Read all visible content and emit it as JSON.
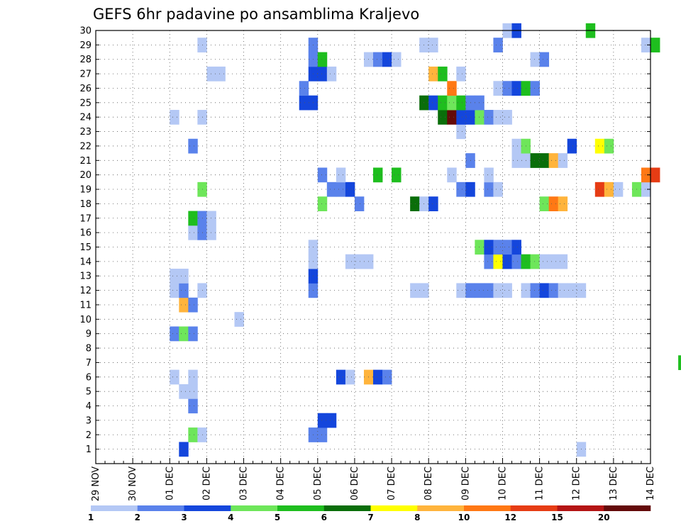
{
  "chart_data": {
    "type": "heatmap",
    "title": "GEFS 6hr padavine po ansamblima Kraljevo",
    "x_tick_labels": [
      "29 NOV",
      "30 NOV",
      "01 DEC",
      "02 DEC",
      "03 DEC",
      "04 DEC",
      "05 DEC",
      "06 DEC",
      "07 DEC",
      "08 DEC",
      "09 DEC",
      "10 DEC",
      "11 DEC",
      "12 DEC",
      "13 DEC",
      "14 DEC"
    ],
    "x_step": "6 hours",
    "y_members": [
      1,
      2,
      3,
      4,
      5,
      6,
      7,
      8,
      9,
      10,
      11,
      12,
      13,
      14,
      15,
      16,
      17,
      18,
      19,
      20,
      21,
      22,
      23,
      24,
      25,
      26,
      27,
      28,
      29,
      30
    ],
    "y_range": [
      0,
      30
    ],
    "grid": true,
    "colorbar": {
      "labels": [
        "1",
        "2",
        "3",
        "4",
        "5",
        "6",
        "7",
        "8",
        "10",
        "12",
        "15",
        "20"
      ],
      "colors": [
        "#b4c8f5",
        "#5a82eb",
        "#1446dc",
        "#6ee65a",
        "#1ebe1e",
        "#0a6e0a",
        "#ffff00",
        "#ffb43c",
        "#ff7814",
        "#e63c14",
        "#b41414",
        "#640a0a"
      ]
    },
    "cells": [
      {
        "member": 1,
        "step": 9,
        "level": 2
      },
      {
        "member": 1,
        "step": 52,
        "level": 0
      },
      {
        "member": 1,
        "step": 80,
        "level": 0
      },
      {
        "member": 2,
        "step": 10,
        "level": 3
      },
      {
        "member": 2,
        "step": 11,
        "level": 0
      },
      {
        "member": 2,
        "step": 23,
        "level": 1
      },
      {
        "member": 2,
        "step": 24,
        "level": 1
      },
      {
        "member": 3,
        "step": 24,
        "level": 2
      },
      {
        "member": 3,
        "step": 25,
        "level": 2
      },
      {
        "member": 3,
        "step": 82,
        "level": 0
      },
      {
        "member": 4,
        "step": 10,
        "level": 1
      },
      {
        "member": 4,
        "step": 90,
        "level": 3
      },
      {
        "member": 5,
        "step": 9,
        "level": 0
      },
      {
        "member": 5,
        "step": 10,
        "level": 0
      },
      {
        "member": 5,
        "step": 70,
        "level": 2
      },
      {
        "member": 6,
        "step": 8,
        "level": 0
      },
      {
        "member": 6,
        "step": 10,
        "level": 0
      },
      {
        "member": 6,
        "step": 26,
        "level": 2
      },
      {
        "member": 6,
        "step": 27,
        "level": 0
      },
      {
        "member": 6,
        "step": 29,
        "level": 7
      },
      {
        "member": 6,
        "step": 30,
        "level": 2
      },
      {
        "member": 6,
        "step": 31,
        "level": 1
      },
      {
        "member": 6,
        "step": 90,
        "level": 1
      },
      {
        "member": 6,
        "step": 95,
        "level": 6
      },
      {
        "member": 7,
        "step": 63,
        "level": 4
      },
      {
        "member": 7,
        "step": 64,
        "level": 3
      },
      {
        "member": 8,
        "step": 95,
        "level": 1
      },
      {
        "member": 9,
        "step": 8,
        "level": 1
      },
      {
        "member": 9,
        "step": 9,
        "level": 3
      },
      {
        "member": 9,
        "step": 10,
        "level": 1
      },
      {
        "member": 9,
        "step": 92,
        "level": 0
      },
      {
        "member": 9,
        "step": 94,
        "level": 1
      },
      {
        "member": 9,
        "step": 95,
        "level": 0
      },
      {
        "member": 10,
        "step": 15,
        "level": 0
      },
      {
        "member": 10,
        "step": 71,
        "level": 0
      },
      {
        "member": 10,
        "step": 72,
        "level": 3
      },
      {
        "member": 10,
        "step": 74,
        "level": 1
      },
      {
        "member": 10,
        "step": 83,
        "level": 1
      },
      {
        "member": 10,
        "step": 84,
        "level": 0
      },
      {
        "member": 10,
        "step": 85,
        "level": 0
      },
      {
        "member": 10,
        "step": 86,
        "level": 7
      },
      {
        "member": 10,
        "step": 87,
        "level": 3
      },
      {
        "member": 11,
        "step": 9,
        "level": 7
      },
      {
        "member": 11,
        "step": 10,
        "level": 1
      },
      {
        "member": 12,
        "step": 8,
        "level": 0
      },
      {
        "member": 12,
        "step": 9,
        "level": 1
      },
      {
        "member": 12,
        "step": 11,
        "level": 0
      },
      {
        "member": 12,
        "step": 23,
        "level": 1
      },
      {
        "member": 12,
        "step": 34,
        "level": 0
      },
      {
        "member": 12,
        "step": 35,
        "level": 0
      },
      {
        "member": 12,
        "step": 39,
        "level": 0
      },
      {
        "member": 12,
        "step": 40,
        "level": 1
      },
      {
        "member": 12,
        "step": 41,
        "level": 1
      },
      {
        "member": 12,
        "step": 42,
        "level": 1
      },
      {
        "member": 12,
        "step": 43,
        "level": 0
      },
      {
        "member": 12,
        "step": 44,
        "level": 0
      },
      {
        "member": 12,
        "step": 46,
        "level": 0
      },
      {
        "member": 12,
        "step": 47,
        "level": 1
      },
      {
        "member": 12,
        "step": 48,
        "level": 2
      },
      {
        "member": 12,
        "step": 49,
        "level": 1
      },
      {
        "member": 12,
        "step": 50,
        "level": 0
      },
      {
        "member": 12,
        "step": 51,
        "level": 0
      },
      {
        "member": 12,
        "step": 52,
        "level": 0
      },
      {
        "member": 12,
        "step": 95,
        "level": 0
      },
      {
        "member": 13,
        "step": 8,
        "level": 0
      },
      {
        "member": 13,
        "step": 9,
        "level": 0
      },
      {
        "member": 13,
        "step": 23,
        "level": 2
      },
      {
        "member": 13,
        "step": 87,
        "level": 1
      },
      {
        "member": 13,
        "step": 88,
        "level": 8
      },
      {
        "member": 13,
        "step": 89,
        "level": 0
      },
      {
        "member": 14,
        "step": 23,
        "level": 0
      },
      {
        "member": 14,
        "step": 27,
        "level": 0
      },
      {
        "member": 14,
        "step": 28,
        "level": 0
      },
      {
        "member": 14,
        "step": 29,
        "level": 0
      },
      {
        "member": 14,
        "step": 42,
        "level": 1
      },
      {
        "member": 14,
        "step": 43,
        "level": 6
      },
      {
        "member": 14,
        "step": 44,
        "level": 2
      },
      {
        "member": 14,
        "step": 45,
        "level": 1
      },
      {
        "member": 14,
        "step": 46,
        "level": 4
      },
      {
        "member": 14,
        "step": 47,
        "level": 3
      },
      {
        "member": 14,
        "step": 48,
        "level": 0
      },
      {
        "member": 14,
        "step": 49,
        "level": 0
      },
      {
        "member": 14,
        "step": 50,
        "level": 0
      },
      {
        "member": 15,
        "step": 23,
        "level": 0
      },
      {
        "member": 15,
        "step": 41,
        "level": 3
      },
      {
        "member": 15,
        "step": 42,
        "level": 2
      },
      {
        "member": 15,
        "step": 43,
        "level": 1
      },
      {
        "member": 15,
        "step": 44,
        "level": 1
      },
      {
        "member": 15,
        "step": 45,
        "level": 2
      },
      {
        "member": 16,
        "step": 10,
        "level": 0
      },
      {
        "member": 16,
        "step": 11,
        "level": 1
      },
      {
        "member": 16,
        "step": 12,
        "level": 0
      },
      {
        "member": 17,
        "step": 10,
        "level": 4
      },
      {
        "member": 17,
        "step": 11,
        "level": 1
      },
      {
        "member": 17,
        "step": 12,
        "level": 0
      },
      {
        "member": 18,
        "step": 24,
        "level": 3
      },
      {
        "member": 18,
        "step": 28,
        "level": 1
      },
      {
        "member": 18,
        "step": 34,
        "level": 5
      },
      {
        "member": 18,
        "step": 35,
        "level": 0
      },
      {
        "member": 18,
        "step": 36,
        "level": 2
      },
      {
        "member": 18,
        "step": 48,
        "level": 3
      },
      {
        "member": 18,
        "step": 49,
        "level": 8
      },
      {
        "member": 18,
        "step": 50,
        "level": 7
      },
      {
        "member": 19,
        "step": 11,
        "level": 3
      },
      {
        "member": 19,
        "step": 25,
        "level": 1
      },
      {
        "member": 19,
        "step": 26,
        "level": 1
      },
      {
        "member": 19,
        "step": 27,
        "level": 2
      },
      {
        "member": 19,
        "step": 39,
        "level": 1
      },
      {
        "member": 19,
        "step": 40,
        "level": 2
      },
      {
        "member": 19,
        "step": 42,
        "level": 1
      },
      {
        "member": 19,
        "step": 43,
        "level": 0
      },
      {
        "member": 19,
        "step": 54,
        "level": 9
      },
      {
        "member": 19,
        "step": 55,
        "level": 7
      },
      {
        "member": 19,
        "step": 56,
        "level": 0
      },
      {
        "member": 19,
        "step": 58,
        "level": 3
      },
      {
        "member": 19,
        "step": 59,
        "level": 0
      },
      {
        "member": 20,
        "step": 24,
        "level": 1
      },
      {
        "member": 20,
        "step": 26,
        "level": 0
      },
      {
        "member": 20,
        "step": 30,
        "level": 4
      },
      {
        "member": 20,
        "step": 32,
        "level": 4
      },
      {
        "member": 20,
        "step": 38,
        "level": 0
      },
      {
        "member": 20,
        "step": 42,
        "level": 0
      },
      {
        "member": 20,
        "step": 59,
        "level": 8
      },
      {
        "member": 20,
        "step": 60,
        "level": 9
      },
      {
        "member": 21,
        "step": 40,
        "level": 1
      },
      {
        "member": 21,
        "step": 45,
        "level": 0
      },
      {
        "member": 21,
        "step": 46,
        "level": 0
      },
      {
        "member": 21,
        "step": 47,
        "level": 5
      },
      {
        "member": 21,
        "step": 48,
        "level": 5
      },
      {
        "member": 21,
        "step": 49,
        "level": 7
      },
      {
        "member": 21,
        "step": 50,
        "level": 0
      },
      {
        "member": 22,
        "step": 10,
        "level": 1
      },
      {
        "member": 22,
        "step": 45,
        "level": 0
      },
      {
        "member": 22,
        "step": 46,
        "level": 3
      },
      {
        "member": 22,
        "step": 51,
        "level": 2
      },
      {
        "member": 22,
        "step": 54,
        "level": 6
      },
      {
        "member": 22,
        "step": 55,
        "level": 3
      },
      {
        "member": 23,
        "step": 39,
        "level": 0
      },
      {
        "member": 24,
        "step": 8,
        "level": 0
      },
      {
        "member": 24,
        "step": 11,
        "level": 0
      },
      {
        "member": 24,
        "step": 37,
        "level": 5
      },
      {
        "member": 24,
        "step": 38,
        "level": 11
      },
      {
        "member": 24,
        "step": 39,
        "level": 2
      },
      {
        "member": 24,
        "step": 40,
        "level": 2
      },
      {
        "member": 24,
        "step": 41,
        "level": 3
      },
      {
        "member": 24,
        "step": 42,
        "level": 1
      },
      {
        "member": 24,
        "step": 43,
        "level": 0
      },
      {
        "member": 24,
        "step": 44,
        "level": 0
      },
      {
        "member": 25,
        "step": 22,
        "level": 2
      },
      {
        "member": 25,
        "step": 23,
        "level": 2
      },
      {
        "member": 25,
        "step": 35,
        "level": 5
      },
      {
        "member": 25,
        "step": 36,
        "level": 2
      },
      {
        "member": 25,
        "step": 37,
        "level": 4
      },
      {
        "member": 25,
        "step": 38,
        "level": 3
      },
      {
        "member": 25,
        "step": 39,
        "level": 4
      },
      {
        "member": 25,
        "step": 40,
        "level": 1
      },
      {
        "member": 25,
        "step": 41,
        "level": 1
      },
      {
        "member": 26,
        "step": 22,
        "level": 1
      },
      {
        "member": 26,
        "step": 38,
        "level": 8
      },
      {
        "member": 26,
        "step": 43,
        "level": 0
      },
      {
        "member": 26,
        "step": 44,
        "level": 1
      },
      {
        "member": 26,
        "step": 45,
        "level": 2
      },
      {
        "member": 26,
        "step": 46,
        "level": 4
      },
      {
        "member": 26,
        "step": 47,
        "level": 1
      },
      {
        "member": 27,
        "step": 12,
        "level": 0
      },
      {
        "member": 27,
        "step": 13,
        "level": 0
      },
      {
        "member": 27,
        "step": 23,
        "level": 2
      },
      {
        "member": 27,
        "step": 24,
        "level": 2
      },
      {
        "member": 27,
        "step": 25,
        "level": 0
      },
      {
        "member": 27,
        "step": 36,
        "level": 7
      },
      {
        "member": 27,
        "step": 37,
        "level": 4
      },
      {
        "member": 27,
        "step": 39,
        "level": 0
      },
      {
        "member": 28,
        "step": 23,
        "level": 1
      },
      {
        "member": 28,
        "step": 24,
        "level": 4
      },
      {
        "member": 28,
        "step": 29,
        "level": 0
      },
      {
        "member": 28,
        "step": 30,
        "level": 1
      },
      {
        "member": 28,
        "step": 31,
        "level": 2
      },
      {
        "member": 28,
        "step": 32,
        "level": 0
      },
      {
        "member": 28,
        "step": 47,
        "level": 0
      },
      {
        "member": 28,
        "step": 48,
        "level": 1
      },
      {
        "member": 29,
        "step": 11,
        "level": 0
      },
      {
        "member": 29,
        "step": 23,
        "level": 1
      },
      {
        "member": 29,
        "step": 35,
        "level": 0
      },
      {
        "member": 29,
        "step": 36,
        "level": 0
      },
      {
        "member": 29,
        "step": 43,
        "level": 1
      },
      {
        "member": 29,
        "step": 59,
        "level": 0
      },
      {
        "member": 29,
        "step": 60,
        "level": 4
      },
      {
        "member": 30,
        "step": 44,
        "level": 0
      },
      {
        "member": 30,
        "step": 45,
        "level": 2
      },
      {
        "member": 30,
        "step": 53,
        "level": 4
      }
    ]
  }
}
